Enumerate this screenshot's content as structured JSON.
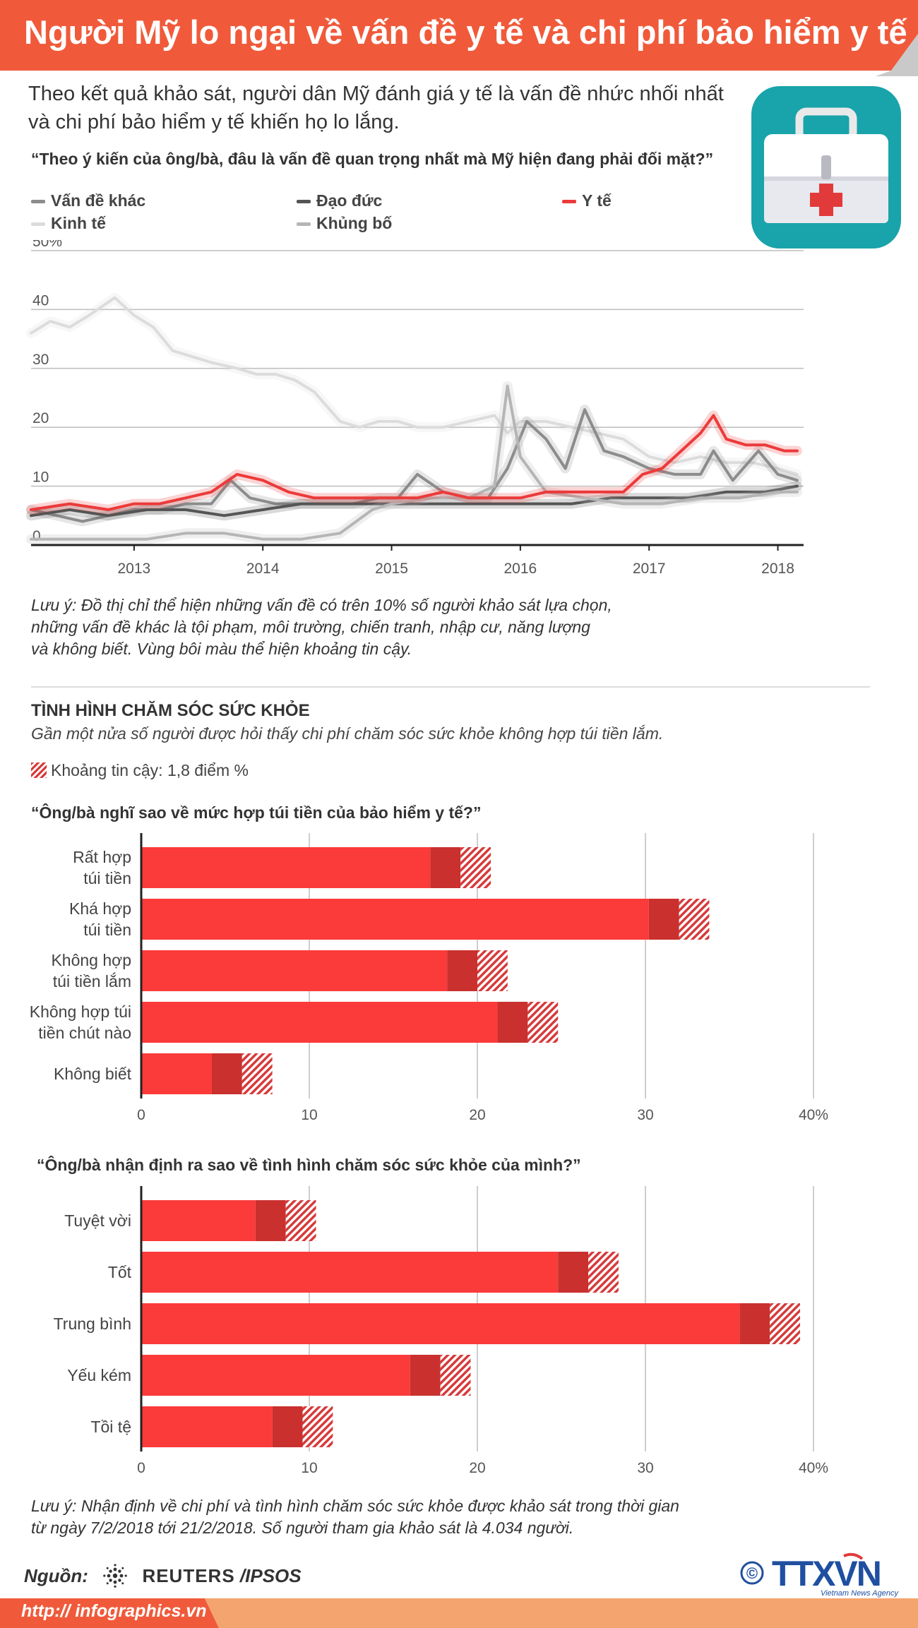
{
  "header": {
    "title": "Người Mỹ lo ngại về vấn đề y tế và chi phí bảo hiểm y tế",
    "subtitle_line1": "Theo kết quả khảo sát, người dân Mỹ đánh giá y tế là vấn đề nhức nhối nhất",
    "subtitle_line2": "và chi phí bảo hiểm y tế khiến họ lo lắng."
  },
  "colors": {
    "accent": "#f05a3a",
    "bar_red": "#fb3a3a",
    "bar_dark": "#c9302e",
    "line_red": "#ec3a3a",
    "teal": "#19a3aa"
  },
  "icons": {
    "hero": "medical-kit-icon",
    "source_logo": "reuters-logo-icon",
    "agency": "ttxvn-logo-icon"
  },
  "line_section": {
    "question": "“Theo ý kiến của ông/bà, đâu là vấn đề quan trọng nhất mà Mỹ hiện đang phải đối mặt?”",
    "legend": [
      {
        "label": "Vấn đề khác",
        "color": "#8c8c8c"
      },
      {
        "label": "Đạo đức",
        "color": "#555555"
      },
      {
        "label": "Y tế",
        "color": "#ec3a3a"
      },
      {
        "label": "Kinh tế",
        "color": "#dcdcdc"
      },
      {
        "label": "Khủng bố",
        "color": "#b5b5b5"
      }
    ],
    "note_line1": "Lưu ý: Đồ thị chỉ thể hiện những vấn đề có trên 10% số người khảo sát lựa chọn,",
    "note_line2": "những vấn đề khác là tội phạm, môi trường, chiến tranh, nhập cư, năng lượng",
    "note_line3": "và không biết. Vùng bôi màu thể hiện khoảng tin cậy."
  },
  "health_section": {
    "title": "TÌNH HÌNH CHĂM SÓC SỨC KHỎE",
    "subtitle": "Gần một nửa số người được hỏi thấy chi phí chăm sóc sức khỏe không hợp túi tiền lắm.",
    "ci_legend": "Khoảng tin cậy: 1,8 điểm %",
    "q_affordability": "“Ông/bà nghĩ sao về mức hợp túi tiền của bảo hiểm y tế?”",
    "q_health": "“Ông/bà nhận định ra sao về tình hình chăm sóc sức khỏe của mình?”",
    "note_line1": "Lưu ý: Nhận định về chi phí và tình hình chăm sóc sức khỏe được khảo sát trong thời gian",
    "note_line2": "từ ngày 7/2/2018 tới 21/2/2018. Số người tham gia khảo sát là 4.034 người."
  },
  "footer": {
    "source_label": "Nguồn:",
    "source_reuters": "REUTERS",
    "source_ipsos": "/IPSOS",
    "url": "http:// infographics.vn",
    "agency": "TTXVN",
    "agency_sub": "Vietnam News Agency",
    "copyright": "©"
  },
  "chart_data": [
    {
      "type": "line",
      "title": "“Theo ý kiến của ông/bà, đâu là vấn đề quan trọng nhất mà Mỹ hiện đang phải đối mặt?”",
      "ylim": [
        0,
        50
      ],
      "yticks": [
        "0",
        "10",
        "20",
        "30",
        "40",
        "50%"
      ],
      "xlim": [
        2012.2,
        2018.2
      ],
      "xticks": [
        "2013",
        "2014",
        "2015",
        "2016",
        "2017",
        "2018"
      ],
      "grid": true,
      "legend_position": "top",
      "series": [
        {
          "name": "Kinh tế",
          "color": "#dcdcdc",
          "x": [
            2012.2,
            2012.35,
            2012.5,
            2012.65,
            2012.85,
            2013.0,
            2013.15,
            2013.3,
            2013.45,
            2013.6,
            2013.8,
            2013.95,
            2014.1,
            2014.25,
            2014.4,
            2014.6,
            2014.75,
            2014.9,
            2015.05,
            2015.2,
            2015.4,
            2015.6,
            2015.8,
            2015.9,
            2016.0,
            2016.2,
            2016.4,
            2016.6,
            2016.8,
            2017.0,
            2017.2,
            2017.4,
            2017.6,
            2017.8,
            2018.0,
            2018.15
          ],
          "y": [
            36,
            38,
            37,
            39,
            42,
            39,
            37,
            33,
            32,
            31,
            30,
            29,
            29,
            28,
            26,
            21,
            20,
            21,
            21,
            20,
            20,
            21,
            22,
            19,
            21,
            21,
            20,
            19,
            18,
            15,
            14,
            15,
            14,
            14,
            13,
            12
          ]
        },
        {
          "name": "Vấn đề khác",
          "color": "#8c8c8c",
          "x": [
            2012.2,
            2012.4,
            2012.6,
            2012.8,
            2013.0,
            2013.2,
            2013.4,
            2013.6,
            2013.75,
            2013.9,
            2014.1,
            2014.3,
            2014.5,
            2014.7,
            2014.9,
            2015.05,
            2015.2,
            2015.4,
            2015.6,
            2015.75,
            2015.9,
            2016.05,
            2016.2,
            2016.35,
            2016.5,
            2016.65,
            2016.8,
            2017.0,
            2017.2,
            2017.4,
            2017.5,
            2017.65,
            2017.85,
            2018.0,
            2018.15
          ],
          "y": [
            6,
            5,
            4,
            5,
            6,
            6,
            7,
            7,
            11,
            8,
            7,
            7,
            7,
            7,
            8,
            8,
            12,
            9,
            8,
            8,
            13,
            21,
            18,
            13,
            23,
            16,
            15,
            13,
            12,
            12,
            16,
            11,
            16,
            12,
            11
          ]
        },
        {
          "name": "Đạo đức",
          "color": "#555555",
          "x": [
            2012.2,
            2012.5,
            2012.8,
            2013.1,
            2013.4,
            2013.7,
            2014.0,
            2014.3,
            2014.6,
            2014.9,
            2015.2,
            2015.5,
            2015.8,
            2016.1,
            2016.4,
            2016.7,
            2017.0,
            2017.3,
            2017.6,
            2017.9,
            2018.15
          ],
          "y": [
            5,
            6,
            5,
            6,
            6,
            5,
            6,
            7,
            7,
            7,
            7,
            7,
            7,
            7,
            7,
            8,
            8,
            8,
            9,
            9,
            10
          ]
        },
        {
          "name": "Khủng bố",
          "color": "#b5b5b5",
          "x": [
            2012.2,
            2012.5,
            2012.8,
            2013.1,
            2013.4,
            2013.7,
            2014.0,
            2014.3,
            2014.6,
            2014.85,
            2015.0,
            2015.3,
            2015.6,
            2015.8,
            2015.9,
            2016.0,
            2016.2,
            2016.5,
            2016.8,
            2017.1,
            2017.4,
            2017.7,
            2018.0,
            2018.15
          ],
          "y": [
            1,
            1,
            1,
            1,
            2,
            2,
            1,
            1,
            2,
            6,
            7,
            8,
            8,
            10,
            27,
            15,
            9,
            8,
            7,
            7,
            8,
            8,
            9,
            9
          ]
        },
        {
          "name": "Y tế",
          "color": "#ec3a3a",
          "x": [
            2012.2,
            2012.5,
            2012.8,
            2013.0,
            2013.2,
            2013.4,
            2013.6,
            2013.8,
            2014.0,
            2014.2,
            2014.4,
            2014.6,
            2014.8,
            2015.0,
            2015.2,
            2015.4,
            2015.6,
            2015.8,
            2016.0,
            2016.2,
            2016.4,
            2016.6,
            2016.8,
            2016.95,
            2017.1,
            2017.25,
            2017.4,
            2017.5,
            2017.6,
            2017.75,
            2017.9,
            2018.05,
            2018.15
          ],
          "y": [
            6,
            7,
            6,
            7,
            7,
            8,
            9,
            12,
            11,
            9,
            8,
            8,
            8,
            8,
            8,
            9,
            8,
            8,
            8,
            9,
            9,
            9,
            9,
            12,
            13,
            16,
            19,
            22,
            18,
            17,
            17,
            16,
            16
          ]
        }
      ]
    },
    {
      "type": "bar",
      "title": "“Ông/bà nghĩ sao về mức hợp túi tiền của bảo hiểm y tế?”",
      "categories": [
        "Rất hợp\ntúi tiền",
        "Khá hợp\ntúi tiền",
        "Không hợp\ntúi tiền lắm",
        "Không hợp túi\ntiền chút nào",
        "Không biết"
      ],
      "values": [
        19.0,
        32.0,
        20.0,
        23.0,
        6.0
      ],
      "ci": 1.8,
      "xlim": [
        0,
        40
      ],
      "xticks": [
        "0",
        "10",
        "20",
        "30",
        "40%"
      ]
    },
    {
      "type": "bar",
      "title": "“Ông/bà nhận định ra sao về tình hình chăm sóc sức khỏe của mình?”",
      "categories": [
        "Tuyệt vời",
        "Tốt",
        "Trung bình",
        "Yếu kém",
        "Tồi tệ"
      ],
      "values": [
        8.6,
        26.6,
        37.4,
        17.8,
        9.6
      ],
      "ci": 1.8,
      "xlim": [
        0,
        40
      ],
      "xticks": [
        "0",
        "10",
        "20",
        "30",
        "40%"
      ]
    }
  ]
}
